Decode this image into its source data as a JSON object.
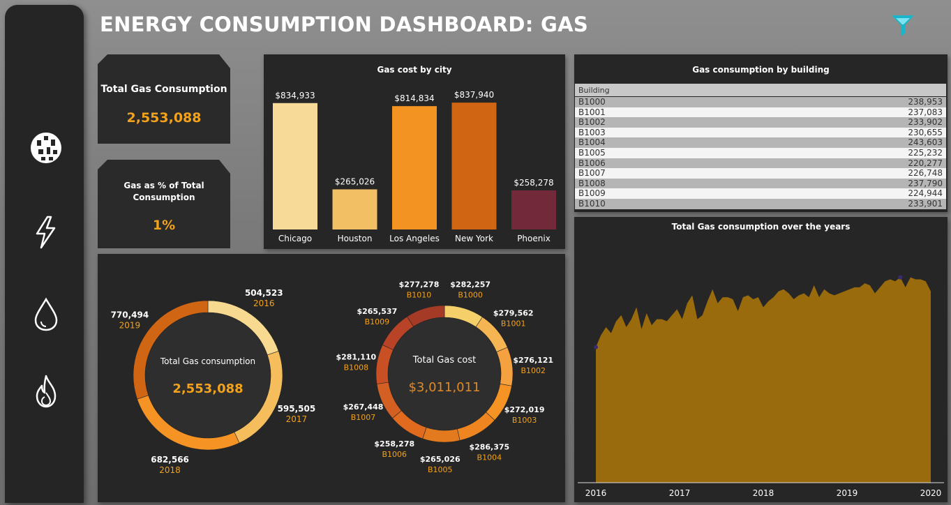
{
  "dashboard_title": "ENERGY CONSUMPTION DASHBOARD: GAS",
  "sidebar": {
    "icons": [
      "buildings-globe-icon",
      "lightning-icon",
      "water-drop-icon",
      "flame-icon"
    ]
  },
  "kpis": {
    "total": {
      "label": "Total Gas Consumption",
      "value": "2,553,088"
    },
    "percent": {
      "label_line1": "Gas as % of Total",
      "label_line2": "Consumption",
      "value": "1%"
    }
  },
  "colors": {
    "accent": "#f3a21b",
    "panel_bg": "#262626",
    "area_fill": "#9a6b0c"
  },
  "chart_data": [
    {
      "type": "bar",
      "title": "Gas cost by city",
      "categories": [
        "Chicago",
        "Houston",
        "Los Angeles",
        "New York",
        "Phoenix"
      ],
      "values": [
        834933,
        265026,
        814834,
        837940,
        258278
      ],
      "value_labels": [
        "$834,933",
        "$265,026",
        "$814,834",
        "$837,940",
        "$258,278"
      ],
      "colors": [
        "#f7da98",
        "#f3bf65",
        "#f39322",
        "#d06614",
        "#722a3a"
      ],
      "ylim": [
        0,
        880000
      ]
    },
    {
      "type": "table",
      "title": "Gas consumption by building",
      "columns": [
        "Building"
      ],
      "rows": [
        [
          "B1000",
          "238,953"
        ],
        [
          "B1001",
          "237,083"
        ],
        [
          "B1002",
          "233,902"
        ],
        [
          "B1003",
          "230,655"
        ],
        [
          "B1004",
          "243,603"
        ],
        [
          "B1005",
          "225,232"
        ],
        [
          "B1006",
          "220,277"
        ],
        [
          "B1007",
          "226,748"
        ],
        [
          "B1008",
          "237,790"
        ],
        [
          "B1009",
          "224,944"
        ],
        [
          "B1010",
          "233,901"
        ]
      ]
    },
    {
      "type": "pie",
      "title": "Total Gas consumption",
      "center_value": "2,553,088",
      "labels": [
        "2016",
        "2017",
        "2018",
        "2019"
      ],
      "values": [
        504523,
        595505,
        682566,
        770494
      ],
      "value_labels": [
        "504,523",
        "595,505",
        "682,566",
        "770,494"
      ],
      "colors": [
        "#f7d98f",
        "#f5bd5b",
        "#f59324",
        "#d06614"
      ]
    },
    {
      "type": "pie",
      "title": "Total Gas cost",
      "center_value": "$3,011,011",
      "labels": [
        "B1000",
        "B1001",
        "B1002",
        "B1003",
        "B1004",
        "B1005",
        "B1006",
        "B1007",
        "B1008",
        "B1009",
        "B1010"
      ],
      "values": [
        282257,
        279562,
        276121,
        272019,
        286375,
        265026,
        258278,
        267448,
        281110,
        265537,
        277278
      ],
      "value_labels": [
        "$282,257",
        "$279,562",
        "$276,121",
        "$272,019",
        "$286,375",
        "$265,026",
        "$258,278",
        "$267,448",
        "$281,110",
        "$265,537",
        "$277,278"
      ],
      "colors": [
        "#f5cf6a",
        "#f6b553",
        "#f5a13f",
        "#f59324",
        "#ee8520",
        "#e47a1e",
        "#e06b1f",
        "#d45f22",
        "#c94f24",
        "#b84326",
        "#a53a26"
      ]
    },
    {
      "type": "area",
      "title": "Total Gas consumption over the years",
      "x_ticks": [
        "2016",
        "2017",
        "2018",
        "2019",
        "2020"
      ],
      "x_start": 2016,
      "x_end": 2020,
      "ylim": [
        0,
        60000
      ],
      "values": [
        34000,
        37000,
        39000,
        37500,
        40500,
        42000,
        39000,
        41000,
        44000,
        38500,
        42500,
        39500,
        41000,
        41000,
        40500,
        42000,
        43500,
        41000,
        45000,
        47000,
        41000,
        42000,
        45500,
        48500,
        45000,
        46500,
        46500,
        46000,
        43000,
        46500,
        47000,
        46000,
        46500,
        44000,
        45500,
        46500,
        48000,
        48500,
        47500,
        46000,
        47000,
        47500,
        46500,
        49500,
        46500,
        48500,
        47500,
        47000,
        47500,
        48000,
        48500,
        49000,
        49000,
        50000,
        49500,
        47500,
        49000,
        50500,
        51000,
        50500,
        51500,
        49000,
        51500,
        51000,
        51000,
        50500,
        48000
      ]
    }
  ]
}
